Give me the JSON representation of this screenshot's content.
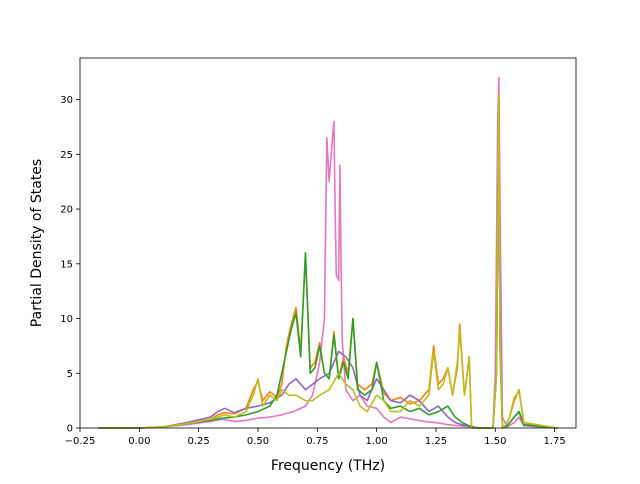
{
  "chart_data": {
    "type": "line",
    "title": "",
    "xlabel": "Frequency (THz)",
    "ylabel": "Partial Density of States",
    "xlim": [
      -0.25,
      1.84
    ],
    "ylim": [
      0,
      33.8
    ],
    "xticks": [
      -0.25,
      0.0,
      0.25,
      0.5,
      0.75,
      1.0,
      1.25,
      1.5,
      1.75
    ],
    "xtick_labels": [
      "−0.25",
      "0.00",
      "0.25",
      "0.50",
      "0.75",
      "1.00",
      "1.25",
      "1.50",
      "1.75"
    ],
    "yticks": [
      0,
      5,
      10,
      15,
      20,
      25,
      30
    ],
    "ytick_labels": [
      "0",
      "5",
      "10",
      "15",
      "20",
      "25",
      "30"
    ],
    "grid": false,
    "legend": "none",
    "series": [
      {
        "color": "#ff7f0e",
        "x": [
          -0.17,
          0.0,
          0.1,
          0.2,
          0.3,
          0.33,
          0.36,
          0.4,
          0.45,
          0.48,
          0.5,
          0.52,
          0.55,
          0.58,
          0.6,
          0.62,
          0.64,
          0.66,
          0.68,
          0.7,
          0.72,
          0.74,
          0.76,
          0.78,
          0.8,
          0.82,
          0.84,
          0.86,
          0.88,
          0.9,
          0.92,
          0.95,
          0.98,
          1.0,
          1.03,
          1.06,
          1.1,
          1.14,
          1.18,
          1.22,
          1.24,
          1.26,
          1.28,
          1.3,
          1.32,
          1.34,
          1.35,
          1.37,
          1.39,
          1.4,
          1.42,
          1.47,
          1.49,
          1.505,
          1.515,
          1.52,
          1.53,
          1.545,
          1.56,
          1.58,
          1.6,
          1.62,
          1.76
        ],
        "y": [
          0,
          0,
          0.1,
          0.4,
          0.8,
          1.2,
          1.4,
          1.3,
          1.8,
          3.5,
          4.3,
          2.5,
          3.3,
          2.8,
          4.0,
          7.5,
          9.5,
          11.0,
          7.0,
          15.8,
          5.5,
          6.0,
          7.8,
          5.0,
          4.5,
          8.8,
          4.5,
          6.5,
          5.0,
          10.0,
          4.0,
          3.5,
          4.0,
          6.0,
          3.2,
          2.5,
          2.8,
          2.2,
          2.5,
          3.5,
          7.5,
          4.0,
          4.5,
          5.5,
          3.0,
          5.5,
          9.5,
          3.0,
          6.5,
          0,
          0,
          0,
          0,
          5.0,
          30.0,
          8.0,
          0,
          0.3,
          1.0,
          2.5,
          3.5,
          0.5,
          0
        ]
      },
      {
        "color": "#e377c2",
        "x": [
          -0.17,
          0.0,
          0.1,
          0.2,
          0.3,
          0.35,
          0.4,
          0.45,
          0.5,
          0.55,
          0.6,
          0.65,
          0.7,
          0.73,
          0.76,
          0.78,
          0.79,
          0.8,
          0.81,
          0.82,
          0.825,
          0.83,
          0.84,
          0.845,
          0.85,
          0.855,
          0.87,
          0.9,
          0.93,
          0.96,
          1.0,
          1.03,
          1.06,
          1.1,
          1.15,
          1.2,
          1.25,
          1.3,
          1.35,
          1.4,
          1.45,
          1.49,
          1.5,
          1.51,
          1.515,
          1.52,
          1.53,
          1.55,
          1.58,
          1.6,
          1.62,
          1.76
        ],
        "y": [
          0,
          0,
          0.1,
          0.3,
          0.6,
          0.8,
          0.6,
          0.7,
          0.9,
          1.0,
          1.2,
          1.5,
          2.0,
          3.0,
          6.0,
          10.0,
          26.5,
          22.5,
          25.5,
          28.0,
          20.0,
          14.0,
          13.5,
          24.0,
          15.0,
          8.0,
          3.5,
          2.5,
          3.0,
          2.0,
          1.8,
          1.0,
          0.5,
          1.0,
          0.8,
          0.6,
          0.5,
          0.3,
          0.2,
          0.1,
          0,
          0,
          5.0,
          28.0,
          32.0,
          20.0,
          1.0,
          0.1,
          0.5,
          1.0,
          0.2,
          0
        ]
      },
      {
        "color": "#9467bd",
        "x": [
          -0.17,
          0.0,
          0.1,
          0.2,
          0.3,
          0.33,
          0.36,
          0.4,
          0.45,
          0.5,
          0.55,
          0.6,
          0.63,
          0.66,
          0.7,
          0.73,
          0.76,
          0.8,
          0.84,
          0.87,
          0.9,
          0.93,
          0.96,
          1.0,
          1.03,
          1.06,
          1.1,
          1.14,
          1.18,
          1.22,
          1.26,
          1.3,
          1.33,
          1.36,
          1.39,
          1.42,
          1.47,
          1.49,
          1.505,
          1.515,
          1.52,
          1.53,
          1.55,
          1.58,
          1.6,
          1.62,
          1.76
        ],
        "y": [
          0,
          0,
          0.1,
          0.5,
          1.0,
          1.5,
          1.8,
          1.4,
          1.8,
          2.0,
          2.3,
          3.0,
          4.0,
          4.5,
          3.5,
          4.0,
          4.5,
          5.0,
          7.0,
          6.5,
          5.5,
          3.0,
          2.5,
          4.5,
          3.5,
          2.5,
          2.3,
          3.0,
          2.5,
          1.5,
          2.0,
          1.0,
          0.5,
          0.3,
          0.2,
          0,
          0,
          0,
          5.0,
          28.0,
          9.0,
          0,
          0.2,
          1.0,
          1.5,
          0.3,
          0
        ]
      },
      {
        "color": "#2ca02c",
        "x": [
          -0.17,
          0.0,
          0.1,
          0.2,
          0.3,
          0.35,
          0.4,
          0.45,
          0.5,
          0.55,
          0.58,
          0.62,
          0.64,
          0.66,
          0.68,
          0.7,
          0.72,
          0.74,
          0.76,
          0.78,
          0.8,
          0.82,
          0.84,
          0.86,
          0.88,
          0.9,
          0.92,
          0.95,
          0.98,
          1.0,
          1.03,
          1.06,
          1.1,
          1.14,
          1.18,
          1.22,
          1.26,
          1.3,
          1.33,
          1.36,
          1.39,
          1.42,
          1.47,
          1.49,
          1.505,
          1.515,
          1.52,
          1.53,
          1.55,
          1.58,
          1.6,
          1.62,
          1.76
        ],
        "y": [
          0,
          0,
          0.1,
          0.4,
          0.7,
          0.9,
          1.0,
          1.2,
          1.5,
          2.0,
          3.0,
          7.0,
          9.0,
          10.5,
          6.5,
          16.0,
          5.0,
          5.5,
          7.5,
          5.0,
          4.5,
          8.5,
          4.5,
          6.0,
          4.5,
          10.0,
          3.5,
          3.0,
          3.5,
          6.0,
          2.5,
          1.8,
          2.0,
          1.5,
          1.8,
          1.2,
          1.5,
          2.0,
          1.0,
          0.5,
          0.2,
          0,
          0,
          0,
          5.0,
          30.0,
          7.0,
          0,
          0.2,
          1.0,
          1.5,
          0.3,
          0
        ]
      },
      {
        "color": "#bcbd22",
        "x": [
          -0.17,
          0.0,
          0.1,
          0.2,
          0.3,
          0.33,
          0.36,
          0.4,
          0.45,
          0.48,
          0.5,
          0.52,
          0.55,
          0.58,
          0.6,
          0.63,
          0.66,
          0.7,
          0.73,
          0.76,
          0.8,
          0.84,
          0.87,
          0.9,
          0.93,
          0.96,
          1.0,
          1.03,
          1.06,
          1.1,
          1.14,
          1.18,
          1.22,
          1.24,
          1.26,
          1.28,
          1.3,
          1.32,
          1.34,
          1.35,
          1.37,
          1.39,
          1.4,
          1.42,
          1.47,
          1.49,
          1.505,
          1.515,
          1.52,
          1.53,
          1.545,
          1.56,
          1.58,
          1.6,
          1.62,
          1.76
        ],
        "y": [
          0,
          0,
          0.1,
          0.4,
          0.8,
          1.0,
          1.2,
          1.0,
          1.5,
          3.0,
          4.5,
          2.0,
          3.0,
          2.5,
          3.5,
          3.0,
          3.0,
          2.5,
          2.5,
          3.0,
          3.5,
          5.0,
          4.0,
          3.5,
          2.0,
          1.5,
          3.0,
          2.5,
          1.5,
          1.5,
          2.5,
          2.0,
          3.0,
          7.0,
          3.5,
          4.0,
          5.5,
          3.0,
          6.0,
          9.0,
          3.0,
          6.5,
          0,
          0,
          0,
          0,
          5.0,
          30.5,
          8.0,
          0,
          0.3,
          1.0,
          2.8,
          3.3,
          0.5,
          0
        ]
      }
    ]
  }
}
